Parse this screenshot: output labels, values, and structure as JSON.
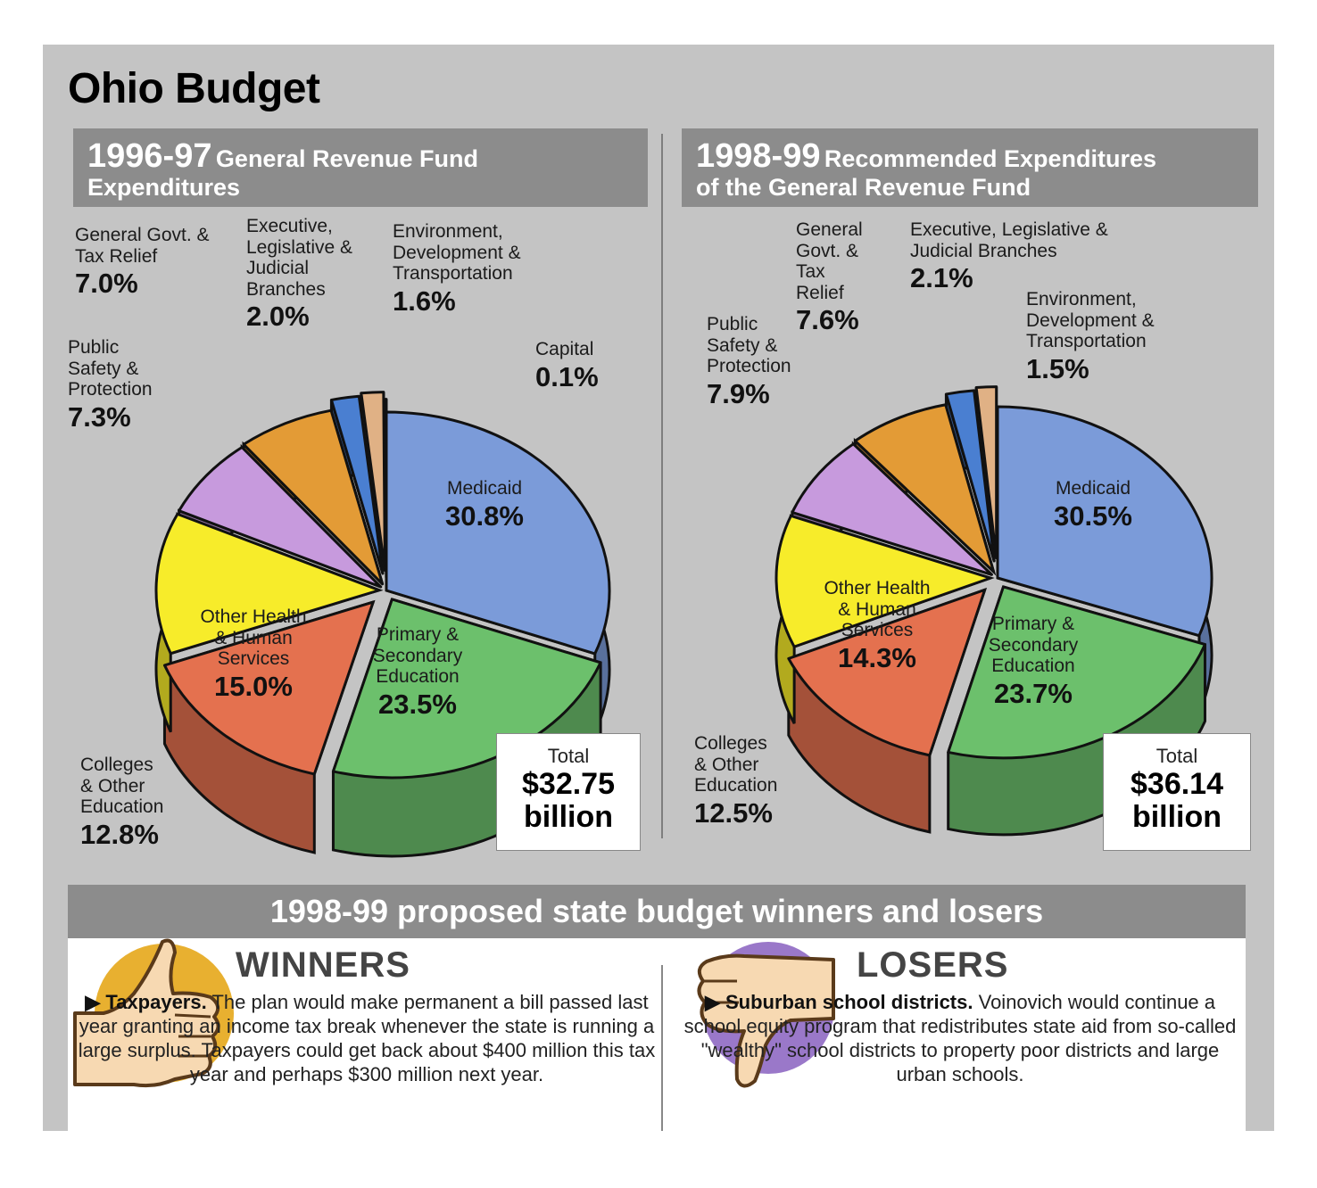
{
  "title": "Ohio Budget",
  "charts": [
    {
      "year": "1996-97",
      "description_line1": "General Revenue Fund",
      "description_line2": "Expenditures",
      "total_label": "Total",
      "total_value": "$32.75",
      "total_unit": "billion",
      "labels": {
        "medicaid": [
          "Medicaid"
        ],
        "primary": [
          "Primary &",
          "Secondary",
          "Education"
        ],
        "other_health": [
          "Other Health",
          "& Human",
          "Services"
        ],
        "colleges": [
          "Colleges",
          "& Other",
          "Education"
        ],
        "public_safety": [
          "Public",
          "Safety &",
          "Protection"
        ],
        "general_govt": [
          "General Govt. &",
          "Tax Relief"
        ],
        "executive": [
          "Executive,",
          "Legislative &",
          "Judicial",
          "Branches"
        ],
        "environment": [
          "Environment,",
          "Development &",
          "Transportation"
        ],
        "capital": [
          "Capital"
        ]
      }
    },
    {
      "year": "1998-99",
      "description_line1": "Recommended Expenditures",
      "description_line2": "of the General Revenue Fund",
      "total_label": "Total",
      "total_value": "$36.14",
      "total_unit": "billion",
      "labels": {
        "medicaid": [
          "Medicaid"
        ],
        "primary": [
          "Primary &",
          "Secondary",
          "Education"
        ],
        "other_health": [
          "Other Health",
          "& Human",
          "Services"
        ],
        "colleges": [
          "Colleges",
          "& Other",
          "Education"
        ],
        "public_safety": [
          "Public",
          "Safety &",
          "Protection"
        ],
        "general_govt": [
          "General",
          "Govt. &",
          "Tax",
          "Relief"
        ],
        "executive": [
          "Executive, Legislative &",
          "Judicial Branches"
        ],
        "environment": [
          "Environment,",
          "Development &",
          "Transportation"
        ]
      }
    }
  ],
  "chart_data": [
    {
      "type": "pie",
      "title": "1996-97 General Revenue Fund Expenditures",
      "categories": [
        "Medicaid",
        "Primary & Secondary Education",
        "Other Health & Human Services",
        "Colleges & Other Education",
        "Public Safety & Protection",
        "General Govt. & Tax Relief",
        "Executive, Legislative & Judicial Branches",
        "Environment, Development & Transportation",
        "Capital"
      ],
      "values": [
        30.8,
        23.5,
        15.0,
        12.8,
        7.3,
        7.0,
        2.0,
        1.6,
        0.1
      ],
      "labels": [
        "30.8%",
        "23.5%",
        "15.0%",
        "12.8%",
        "7.3%",
        "7.0%",
        "2.0%",
        "1.6%",
        "0.1%"
      ],
      "colors": [
        "#7b9bd9",
        "#6cc06c",
        "#e4714f",
        "#f7ec2a",
        "#c79add",
        "#e39b36",
        "#4a7fd1",
        "#e0b185",
        "#f0f0f0"
      ]
    },
    {
      "type": "pie",
      "title": "1998-99 Recommended Expenditures of the General Revenue Fund",
      "categories": [
        "Medicaid",
        "Primary & Secondary Education",
        "Other Health & Human Services",
        "Colleges & Other Education",
        "Public Safety & Protection",
        "General Govt. & Tax Relief",
        "Executive, Legislative & Judicial Branches",
        "Environment, Development & Transportation"
      ],
      "values": [
        30.5,
        23.7,
        14.3,
        12.5,
        7.9,
        7.6,
        2.1,
        1.5
      ],
      "labels": [
        "30.5%",
        "23.7%",
        "14.3%",
        "12.5%",
        "7.9%",
        "7.6%",
        "2.1%",
        "1.5%"
      ],
      "colors": [
        "#7b9bd9",
        "#6cc06c",
        "#e4714f",
        "#f7ec2a",
        "#c79add",
        "#e39b36",
        "#4a7fd1",
        "#e0b185"
      ]
    }
  ],
  "winners_losers": {
    "header": "1998-99 proposed state budget winners and losers",
    "winners_title": "WINNERS",
    "winners_lead": "▶ Taxpayers.",
    "winners_text": "The plan would make permanent a bill passed last year granting an income tax break whenever the state is running a large surplus. Taxpayers could get back about $400 million this tax year and perhaps $300 million next year.",
    "losers_title": "LOSERS",
    "losers_lead": "▶ Suburban school districts.",
    "losers_text": "Voinovich would continue a school equity program that redistributes state aid from so-called \"wealthy\" school districts to property poor districts and large urban schools."
  }
}
